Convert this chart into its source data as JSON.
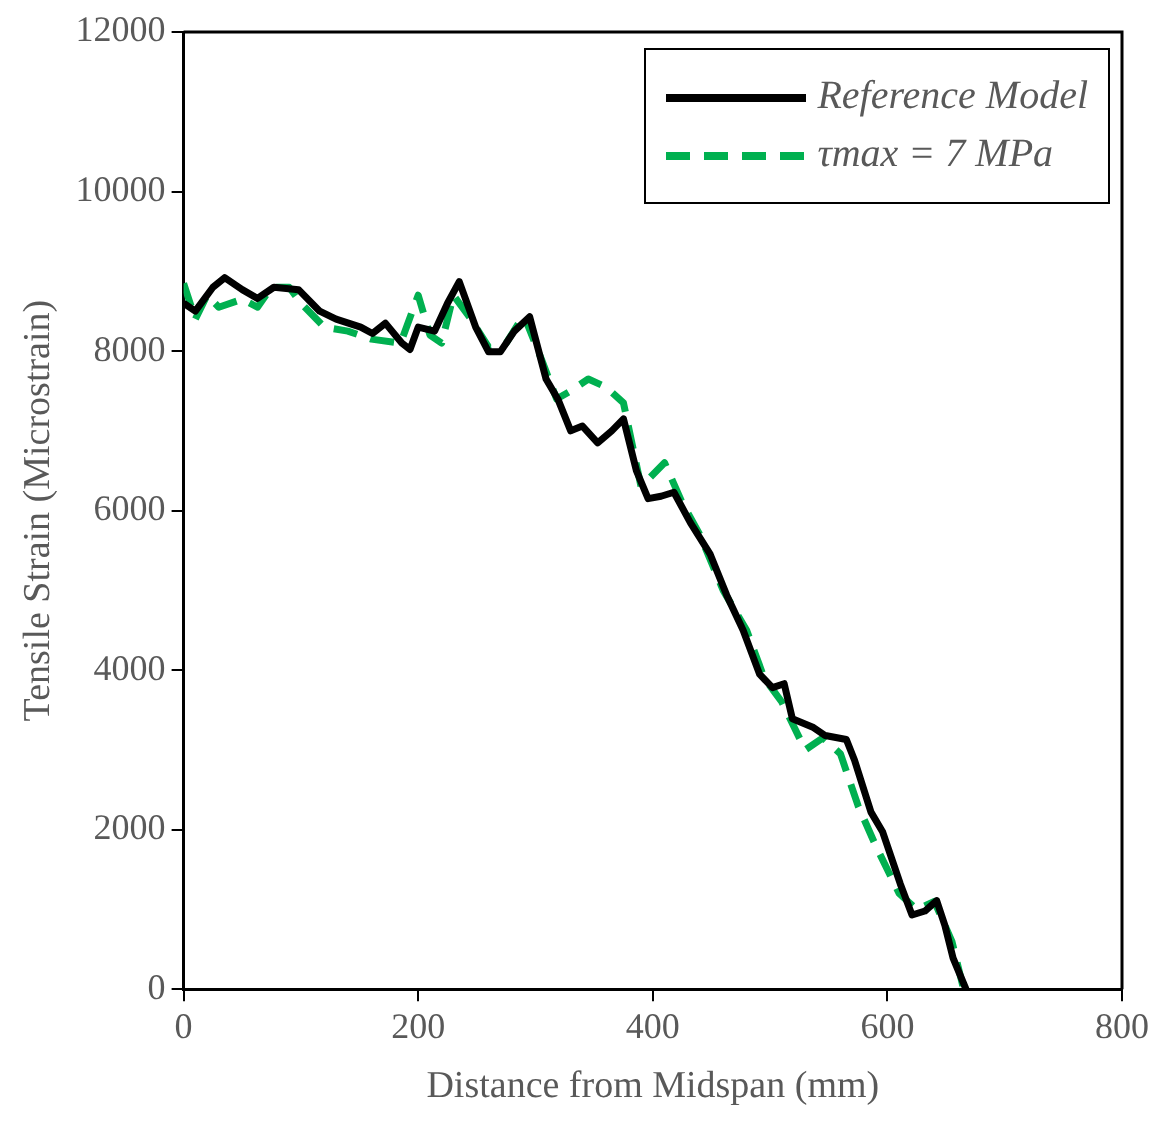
{
  "chart_data": {
    "type": "line",
    "xlabel": "Distance from Midspan (mm)",
    "ylabel": "Tensile Strain (Microstrain)",
    "xlim": [
      0,
      800
    ],
    "xticks": [
      0,
      200,
      400,
      600,
      800
    ],
    "ylim": [
      0,
      12000
    ],
    "yticks": [
      0,
      2000,
      4000,
      6000,
      8000,
      10000,
      12000
    ],
    "grid": false,
    "legend": "top right",
    "marker": "none",
    "series": [
      {
        "name": "Reference Model",
        "color": "#000000",
        "line_style": "solid",
        "x": [
          0,
          10,
          25,
          35,
          50,
          63,
          77,
          98,
          116,
          130,
          151,
          161,
          172,
          186,
          193,
          200,
          214,
          225,
          235,
          249,
          260,
          270,
          282,
          295,
          309,
          319,
          330,
          340,
          353,
          365,
          375,
          386,
          396,
          407,
          418,
          432,
          449,
          463,
          477,
          491,
          502,
          512,
          519,
          537,
          547,
          565,
          572,
          586,
          596,
          611,
          621,
          632,
          642,
          649,
          656,
          667
        ],
        "values": [
          8600,
          8500,
          8800,
          8920,
          8770,
          8660,
          8800,
          8770,
          8500,
          8400,
          8300,
          8220,
          8350,
          8100,
          8020,
          8300,
          8250,
          8600,
          8870,
          8300,
          7990,
          7990,
          8250,
          8430,
          7650,
          7400,
          7000,
          7060,
          6850,
          7000,
          7150,
          6500,
          6150,
          6180,
          6230,
          5850,
          5450,
          4940,
          4500,
          3950,
          3780,
          3830,
          3390,
          3280,
          3180,
          3130,
          2870,
          2220,
          1970,
          1320,
          930,
          980,
          1110,
          800,
          390,
          0
        ]
      },
      {
        "name": "τmax = 7 MPa",
        "color": "#00b050",
        "line_style": "dashed",
        "x": [
          0,
          10,
          20,
          30,
          50,
          63,
          75,
          90,
          100,
          120,
          140,
          160,
          185,
          195,
          200,
          210,
          220,
          230,
          245,
          260,
          275,
          290,
          305,
          318,
          330,
          345,
          360,
          375,
          390,
          410,
          425,
          440,
          460,
          480,
          495,
          510,
          530,
          545,
          560,
          575,
          590,
          610,
          625,
          640,
          655,
          665
        ],
        "values": [
          8850,
          8400,
          8700,
          8550,
          8650,
          8550,
          8800,
          8800,
          8600,
          8300,
          8250,
          8150,
          8100,
          8500,
          8700,
          8200,
          8100,
          8700,
          8400,
          8050,
          8100,
          8450,
          7900,
          7400,
          7500,
          7650,
          7550,
          7350,
          6300,
          6600,
          6100,
          5700,
          5000,
          4500,
          3900,
          3600,
          3000,
          3150,
          2950,
          2300,
          1800,
          1200,
          1000,
          1100,
          600,
          0
        ]
      }
    ]
  }
}
